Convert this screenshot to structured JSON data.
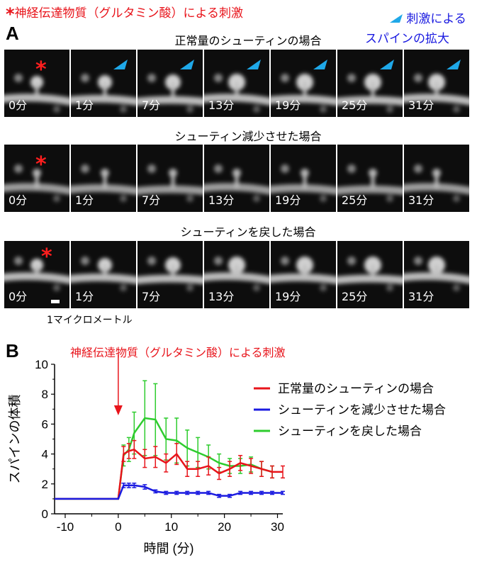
{
  "header": {
    "stim_star": "*",
    "stim_label": "神経伝達物質（グルタミン酸）による刺激",
    "arrow_label_line1": "刺激による",
    "arrow_label_line2": "スパインの拡大"
  },
  "panel_a": {
    "letter": "A",
    "rows": [
      {
        "title": "正常量のシューティンの場合",
        "times": [
          "0分",
          "1分",
          "7分",
          "13分",
          "19分",
          "25分",
          "31分"
        ],
        "arrows": true
      },
      {
        "title": "シューティン減少させた場合",
        "times": [
          "0分",
          "1分",
          "7分",
          "13分",
          "19分",
          "25分",
          "31分"
        ],
        "arrows": false
      },
      {
        "title": "シューティンを戻した場合",
        "times": [
          "0分",
          "1分",
          "7分",
          "13分",
          "19分",
          "25分",
          "31分"
        ],
        "arrows": false
      }
    ],
    "scale_label": "1マイクロメートル"
  },
  "panel_b": {
    "letter": "B",
    "annotation": "神経伝達物質（グルタミン酸）による刺激"
  },
  "colors": {
    "red": "#e8141b",
    "blue": "#1a1ae0",
    "green": "#2ecc2e",
    "cyan": "#1fa8e8"
  },
  "chart_data": {
    "type": "line",
    "xlabel": "時間 (分)",
    "ylabel": "スパインの体積",
    "xlim": [
      -12,
      31
    ],
    "ylim": [
      0,
      10
    ],
    "xticks": [
      -10,
      0,
      10,
      20,
      30
    ],
    "yticks": [
      0,
      2,
      4,
      6,
      8,
      10
    ],
    "legend_position": "top-right",
    "series": [
      {
        "name": "正常量のシューティンの場合",
        "color": "#e8141b",
        "x": [
          -12,
          0,
          1,
          2,
          3,
          5,
          7,
          9,
          11,
          13,
          15,
          17,
          19,
          21,
          23,
          25,
          27,
          29,
          31
        ],
        "y": [
          1.0,
          1.0,
          4.0,
          4.2,
          4.3,
          3.7,
          3.8,
          3.4,
          4.0,
          3.0,
          3.0,
          3.2,
          2.7,
          3.0,
          3.4,
          3.2,
          3.0,
          2.8,
          2.8
        ],
        "err": [
          0,
          0,
          0.5,
          0.5,
          0.6,
          0.6,
          0.7,
          0.6,
          0.7,
          0.5,
          0.5,
          0.6,
          0.4,
          0.5,
          0.5,
          0.5,
          0.5,
          0.4,
          0.4
        ]
      },
      {
        "name": "シューティンを減少させた場合",
        "color": "#1a1ae0",
        "x": [
          -12,
          0,
          1,
          2,
          3,
          5,
          7,
          9,
          11,
          13,
          15,
          17,
          19,
          21,
          23,
          25,
          27,
          29,
          31
        ],
        "y": [
          1.0,
          1.0,
          1.9,
          1.9,
          1.9,
          1.8,
          1.5,
          1.4,
          1.4,
          1.4,
          1.4,
          1.4,
          1.2,
          1.2,
          1.4,
          1.4,
          1.4,
          1.4,
          1.4
        ],
        "err": [
          0,
          0,
          0.15,
          0.15,
          0.15,
          0.15,
          0.1,
          0.1,
          0.1,
          0.1,
          0.1,
          0.1,
          0.1,
          0.1,
          0.1,
          0.1,
          0.1,
          0.1,
          0.1
        ]
      },
      {
        "name": "シューティンを戻した場合",
        "color": "#2ecc2e",
        "x": [
          -12,
          0,
          1,
          2,
          3,
          5,
          7,
          9,
          11,
          13,
          15,
          17,
          19,
          21,
          23,
          25,
          27,
          29
        ],
        "y": [
          1.0,
          1.0,
          3.9,
          4.3,
          5.4,
          6.4,
          6.3,
          5.0,
          4.9,
          4.4,
          4.1,
          3.8,
          3.4,
          3.2,
          3.2,
          3.3,
          3.0,
          2.8
        ],
        "err": [
          0,
          0,
          0.7,
          0.8,
          1.4,
          2.5,
          2.4,
          1.4,
          1.5,
          1.2,
          1.0,
          0.8,
          0.6,
          0.5,
          0.5,
          0.5,
          0.5,
          0.4
        ]
      }
    ]
  }
}
